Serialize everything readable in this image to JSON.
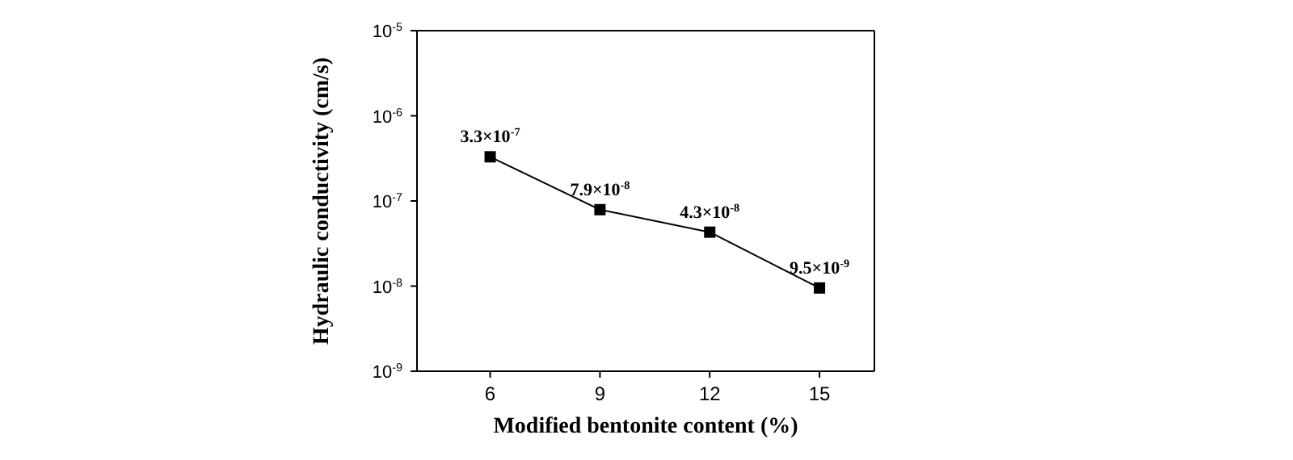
{
  "chart_data": {
    "type": "line",
    "xlabel": "Modified bentonite content (%)",
    "ylabel": "Hydraulic conductivity (cm/s)",
    "x": [
      6,
      9,
      12,
      15
    ],
    "series": [
      {
        "color": "#000000",
        "values": [
          3.3e-07,
          7.9e-08,
          4.3e-08,
          9.5e-09
        ],
        "value_labels": [
          "3.3×10$^{-7}$",
          "7.9×10$^{-8}$",
          "4.3×10$^{-8}$",
          "9.5×10$^{-9}$"
        ]
      }
    ],
    "xlim": [
      4,
      16.5
    ],
    "xticks": [
      6,
      9,
      12,
      15
    ],
    "ylim": [
      1e-09,
      1e-05
    ],
    "yticks": [
      {
        "value": 1e-09,
        "label": "10$^{-9}$"
      },
      {
        "value": 1e-08,
        "label": "10$^{-8}$"
      },
      {
        "value": 1e-07,
        "label": "10$^{-7}$"
      },
      {
        "value": 1e-06,
        "label": "10$^{-6}$"
      },
      {
        "value": 1e-05,
        "label": "10$^{-5}$"
      }
    ],
    "log": "y",
    "grid": false,
    "marker": "square",
    "line_style": "solid"
  }
}
